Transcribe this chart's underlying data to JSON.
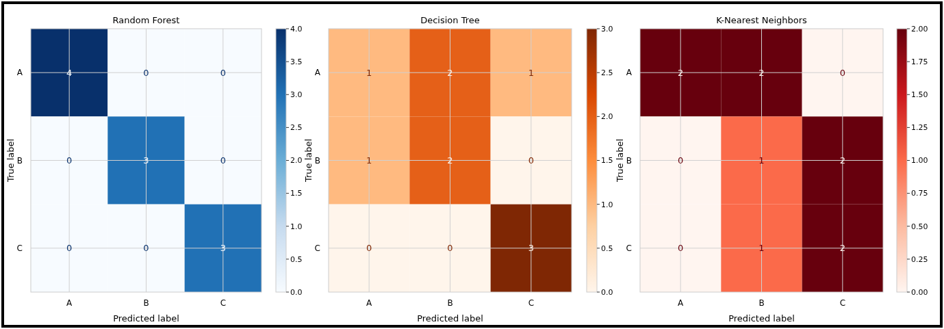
{
  "chart_data": [
    {
      "type": "heatmap",
      "title": "Random Forest",
      "xlabel": "Predicted label",
      "ylabel": "True label",
      "categories": [
        "A",
        "B",
        "C"
      ],
      "y_categories": [
        "A",
        "B",
        "C"
      ],
      "cells": [
        [
          4,
          0,
          0
        ],
        [
          0,
          3,
          0
        ],
        [
          0,
          0,
          3
        ]
      ],
      "data_labels": true,
      "grid": true,
      "colors": [
        "#f7fbff",
        "#c6dbef",
        "#6baed6",
        "#2171b5",
        "#08306b"
      ],
      "clim": [
        0,
        4
      ],
      "cticks": [
        {
          "value": 0,
          "label": "0.0"
        },
        {
          "value": 0.5,
          "label": "0.5"
        },
        {
          "value": 1,
          "label": "1.0"
        },
        {
          "value": 1.5,
          "label": "1.5"
        },
        {
          "value": 2,
          "label": "2.0"
        },
        {
          "value": 2.5,
          "label": "2.5"
        },
        {
          "value": 3,
          "label": "3.0"
        },
        {
          "value": 3.5,
          "label": "3.5"
        },
        {
          "value": 4,
          "label": "4.0"
        }
      ]
    },
    {
      "type": "heatmap",
      "title": "Decision Tree",
      "xlabel": "Predicted label",
      "ylabel": "True label",
      "categories": [
        "A",
        "B",
        "C"
      ],
      "y_categories": [
        "A",
        "B",
        "C"
      ],
      "cells": [
        [
          1,
          2,
          1
        ],
        [
          1,
          2,
          0
        ],
        [
          0,
          0,
          3
        ]
      ],
      "data_labels": true,
      "grid": true,
      "colors": [
        "#fff5eb",
        "#fdd0a2",
        "#fd8d3c",
        "#d94801",
        "#7f2704"
      ],
      "clim": [
        0,
        3
      ],
      "cticks": [
        {
          "value": 0,
          "label": "0.0"
        },
        {
          "value": 0.5,
          "label": "0.5"
        },
        {
          "value": 1,
          "label": "1.0"
        },
        {
          "value": 1.5,
          "label": "1.5"
        },
        {
          "value": 2,
          "label": "2.0"
        },
        {
          "value": 2.5,
          "label": "2.5"
        },
        {
          "value": 3,
          "label": "3.0"
        }
      ]
    },
    {
      "type": "heatmap",
      "title": "K-Nearest Neighbors",
      "xlabel": "Predicted label",
      "ylabel": "True label",
      "categories": [
        "A",
        "B",
        "C"
      ],
      "y_categories": [
        "A",
        "B",
        "C"
      ],
      "cells": [
        [
          2,
          2,
          0
        ],
        [
          0,
          1,
          2
        ],
        [
          0,
          1,
          2
        ]
      ],
      "data_labels": true,
      "grid": true,
      "colors": [
        "#fff5f0",
        "#fcbba1",
        "#fb6a4a",
        "#cb181d",
        "#67000d"
      ],
      "clim": [
        0,
        2
      ],
      "cticks": [
        {
          "value": 0,
          "label": "0.00"
        },
        {
          "value": 0.25,
          "label": "0.25"
        },
        {
          "value": 0.5,
          "label": "0.50"
        },
        {
          "value": 0.75,
          "label": "0.75"
        },
        {
          "value": 1,
          "label": "1.00"
        },
        {
          "value": 1.25,
          "label": "1.25"
        },
        {
          "value": 1.5,
          "label": "1.50"
        },
        {
          "value": 1.75,
          "label": "1.75"
        },
        {
          "value": 2,
          "label": "2.00"
        }
      ]
    }
  ]
}
